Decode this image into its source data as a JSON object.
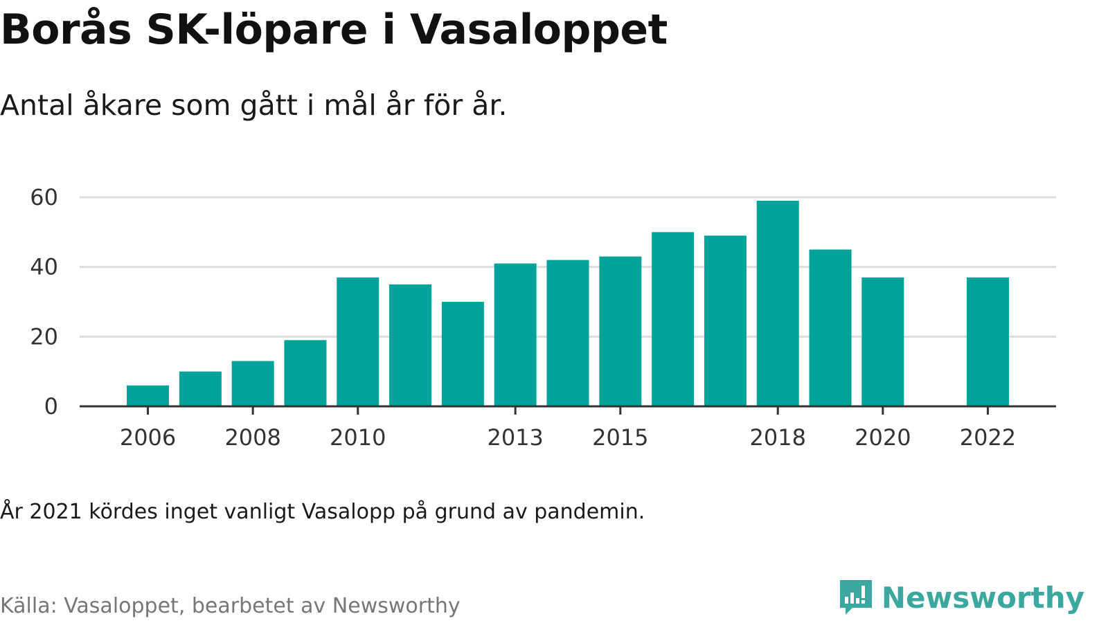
{
  "title": "Borås SK-löpare i Vasaloppet",
  "subtitle": "Antal åkare som gått i mål år för år.",
  "note": "År 2021 kördes inget vanligt Vasalopp på grund av pandemin.",
  "source": "Källa: Vasaloppet, bearbetet av Newsworthy",
  "brand": {
    "name": "Newsworthy",
    "logo_icon": "newsworthy-chart-icon",
    "color": "#3aa89e"
  },
  "chart_data": {
    "type": "bar",
    "x": [
      2006,
      2007,
      2008,
      2009,
      2010,
      2011,
      2012,
      2013,
      2014,
      2015,
      2016,
      2017,
      2018,
      2019,
      2020,
      2022
    ],
    "values": [
      6,
      10,
      13,
      19,
      37,
      35,
      30,
      41,
      42,
      43,
      50,
      49,
      59,
      45,
      37,
      37
    ],
    "xticks": [
      "2006",
      "2008",
      "2010",
      "2013",
      "2015",
      "2018",
      "2020",
      "2022"
    ],
    "yticks": [
      0,
      20,
      40,
      60
    ],
    "ylim": [
      0,
      60
    ],
    "xlim": [
      2004.7,
      2023.3
    ],
    "bar_color": "#00a39a",
    "grid": true,
    "xlabel": "",
    "ylabel": ""
  }
}
